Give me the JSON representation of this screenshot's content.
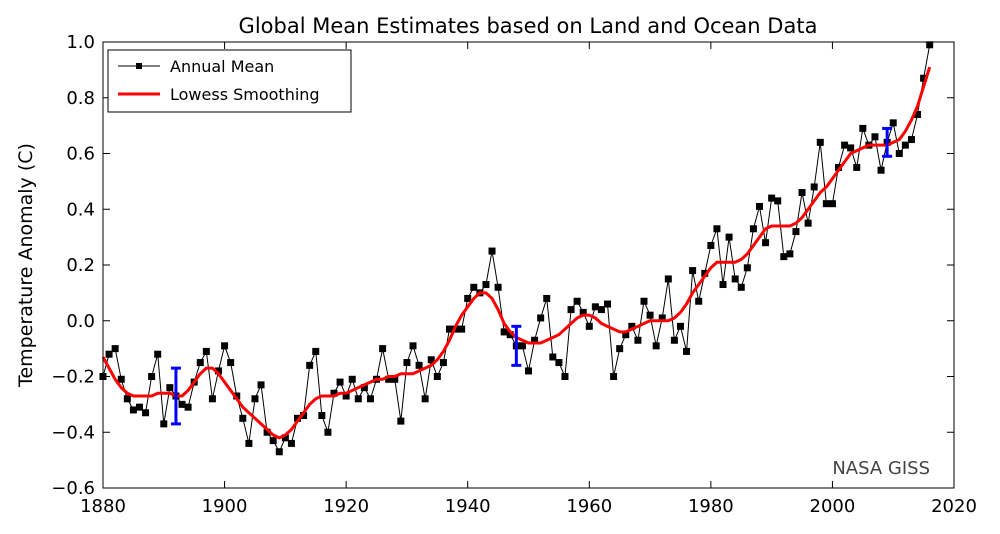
{
  "chart_data": {
    "type": "line",
    "title": "Global Mean Estimates based on Land and Ocean Data",
    "xlabel": "",
    "ylabel": "Temperature Anomaly (C)",
    "xlim": [
      1880,
      2020
    ],
    "ylim": [
      -0.6,
      1.0
    ],
    "xticks": [
      "1880",
      "1900",
      "1920",
      "1940",
      "1960",
      "1980",
      "2000",
      "2020"
    ],
    "yticks": [
      "−0.6",
      "−0.4",
      "−0.2",
      "0.0",
      "0.2",
      "0.4",
      "0.6",
      "0.8",
      "1.0"
    ],
    "grid": false,
    "legend_position": "top-left",
    "annotation": "NASA GISS",
    "x_start": 1880,
    "series": [
      {
        "name": "Annual Mean",
        "color": "#000000",
        "marker": "square",
        "values": [
          -0.2,
          -0.12,
          -0.1,
          -0.21,
          -0.28,
          -0.32,
          -0.31,
          -0.33,
          -0.2,
          -0.12,
          -0.37,
          -0.24,
          -0.27,
          -0.3,
          -0.31,
          -0.22,
          -0.15,
          -0.11,
          -0.28,
          -0.18,
          -0.09,
          -0.15,
          -0.27,
          -0.35,
          -0.44,
          -0.28,
          -0.23,
          -0.4,
          -0.43,
          -0.47,
          -0.42,
          -0.44,
          -0.35,
          -0.34,
          -0.16,
          -0.11,
          -0.34,
          -0.4,
          -0.26,
          -0.22,
          -0.27,
          -0.21,
          -0.28,
          -0.24,
          -0.28,
          -0.21,
          -0.1,
          -0.21,
          -0.21,
          -0.36,
          -0.15,
          -0.09,
          -0.16,
          -0.28,
          -0.14,
          -0.2,
          -0.15,
          -0.03,
          -0.03,
          -0.03,
          0.08,
          0.12,
          0.1,
          0.13,
          0.25,
          0.12,
          -0.04,
          -0.05,
          -0.09,
          -0.09,
          -0.18,
          -0.07,
          0.01,
          0.08,
          -0.13,
          -0.15,
          -0.2,
          0.04,
          0.07,
          0.03,
          -0.02,
          0.05,
          0.04,
          0.06,
          -0.2,
          -0.1,
          -0.05,
          -0.02,
          -0.07,
          0.07,
          0.02,
          -0.09,
          0.01,
          0.15,
          -0.07,
          -0.02,
          -0.11,
          0.18,
          0.07,
          0.17,
          0.27,
          0.33,
          0.13,
          0.3,
          0.15,
          0.12,
          0.19,
          0.33,
          0.41,
          0.28,
          0.44,
          0.43,
          0.23,
          0.24,
          0.32,
          0.46,
          0.35,
          0.48,
          0.64,
          0.42,
          0.42,
          0.55,
          0.63,
          0.62,
          0.55,
          0.69,
          0.63,
          0.66,
          0.54,
          0.64,
          0.71,
          0.6,
          0.63,
          0.65,
          0.74,
          0.87,
          0.99
        ]
      },
      {
        "name": "Lowess Smoothing",
        "color": "#ff0000",
        "values": [
          -0.13,
          -0.17,
          -0.21,
          -0.24,
          -0.26,
          -0.27,
          -0.27,
          -0.27,
          -0.27,
          -0.26,
          -0.26,
          -0.26,
          -0.27,
          -0.27,
          -0.25,
          -0.22,
          -0.19,
          -0.17,
          -0.17,
          -0.19,
          -0.22,
          -0.25,
          -0.28,
          -0.31,
          -0.33,
          -0.35,
          -0.37,
          -0.39,
          -0.41,
          -0.42,
          -0.41,
          -0.39,
          -0.36,
          -0.33,
          -0.3,
          -0.28,
          -0.27,
          -0.27,
          -0.27,
          -0.26,
          -0.26,
          -0.25,
          -0.24,
          -0.23,
          -0.22,
          -0.21,
          -0.21,
          -0.2,
          -0.2,
          -0.19,
          -0.19,
          -0.19,
          -0.18,
          -0.17,
          -0.16,
          -0.14,
          -0.11,
          -0.07,
          -0.02,
          0.02,
          0.05,
          0.08,
          0.1,
          0.1,
          0.08,
          0.04,
          -0.01,
          -0.04,
          -0.06,
          -0.07,
          -0.08,
          -0.08,
          -0.08,
          -0.07,
          -0.06,
          -0.05,
          -0.03,
          -0.01,
          0.01,
          0.02,
          0.02,
          0.01,
          -0.01,
          -0.02,
          -0.03,
          -0.04,
          -0.04,
          -0.03,
          -0.02,
          -0.01,
          0.0,
          0.0,
          0.0,
          0.0,
          0.01,
          0.03,
          0.06,
          0.1,
          0.13,
          0.16,
          0.19,
          0.21,
          0.21,
          0.21,
          0.21,
          0.22,
          0.24,
          0.27,
          0.3,
          0.33,
          0.34,
          0.34,
          0.34,
          0.34,
          0.35,
          0.37,
          0.4,
          0.43,
          0.46,
          0.48,
          0.51,
          0.54,
          0.57,
          0.6,
          0.61,
          0.62,
          0.63,
          0.63,
          0.63,
          0.63,
          0.64,
          0.65,
          0.68,
          0.72,
          0.77,
          0.84,
          0.91
        ]
      }
    ],
    "error_bars": {
      "color": "#0000ff",
      "points": [
        {
          "x": 1892,
          "y": -0.27,
          "low": -0.37,
          "high": -0.17
        },
        {
          "x": 1948,
          "y": -0.09,
          "low": -0.16,
          "high": -0.02
        },
        {
          "x": 2009,
          "y": 0.64,
          "low": 0.59,
          "high": 0.69
        }
      ]
    }
  }
}
